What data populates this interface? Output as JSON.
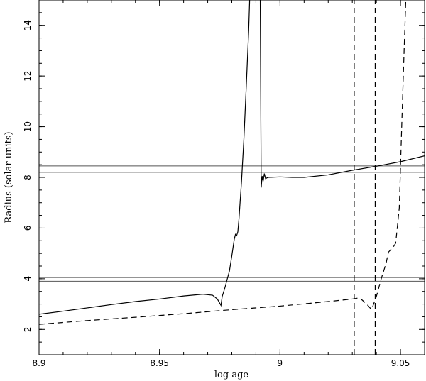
{
  "chart_data": {
    "type": "line",
    "title": "",
    "xlabel": "log age",
    "ylabel": "Radius (solar units)",
    "xlim": [
      8.9,
      9.06
    ],
    "ylim": [
      1.0,
      15.0
    ],
    "grid": false,
    "legend": "none",
    "xticks": [
      {
        "value": 8.9,
        "label": "8.9"
      },
      {
        "value": 8.95,
        "label": "8.95"
      },
      {
        "value": 9.0,
        "label": "9"
      },
      {
        "value": 9.05,
        "label": "9.05"
      }
    ],
    "yticks": [
      {
        "value": 2,
        "label": "2"
      },
      {
        "value": 4,
        "label": "4"
      },
      {
        "value": 6,
        "label": "6"
      },
      {
        "value": 8,
        "label": "8"
      },
      {
        "value": 10,
        "label": "10"
      },
      {
        "value": 12,
        "label": "12"
      },
      {
        "value": 14,
        "label": "14"
      }
    ],
    "hlines": [
      8.45,
      8.2,
      4.05,
      3.9
    ],
    "series": [
      {
        "style": "solid",
        "color": "#000000",
        "points": [
          [
            8.9,
            2.6
          ],
          [
            8.91,
            2.72
          ],
          [
            8.92,
            2.85
          ],
          [
            8.93,
            2.98
          ],
          [
            8.94,
            3.1
          ],
          [
            8.95,
            3.2
          ],
          [
            8.96,
            3.32
          ],
          [
            8.968,
            3.39
          ],
          [
            8.972,
            3.35
          ],
          [
            8.974,
            3.2
          ],
          [
            8.9755,
            2.95
          ],
          [
            8.976,
            3.3
          ],
          [
            8.977,
            3.6
          ],
          [
            8.978,
            3.95
          ],
          [
            8.979,
            4.3
          ],
          [
            8.98,
            4.9
          ],
          [
            8.981,
            5.55
          ],
          [
            8.9815,
            5.75
          ],
          [
            8.982,
            5.7
          ],
          [
            8.9825,
            5.85
          ],
          [
            8.983,
            6.4
          ],
          [
            8.984,
            7.8
          ],
          [
            8.985,
            9.5
          ],
          [
            8.986,
            11.6
          ],
          [
            8.987,
            13.8
          ],
          [
            8.9874,
            15.0
          ]
        ]
      },
      {
        "style": "solid",
        "color": "#000000",
        "points": [
          [
            8.9918,
            15.0
          ],
          [
            8.9922,
            7.6
          ],
          [
            8.9926,
            8.05
          ],
          [
            8.993,
            7.85
          ],
          [
            8.9935,
            8.15
          ],
          [
            8.994,
            7.95
          ],
          [
            8.995,
            8.0
          ],
          [
            9.0,
            8.02
          ],
          [
            9.005,
            8.0
          ],
          [
            9.01,
            8.0
          ],
          [
            9.02,
            8.1
          ],
          [
            9.03,
            8.28
          ],
          [
            9.04,
            8.44
          ],
          [
            9.05,
            8.62
          ],
          [
            9.06,
            8.85
          ]
        ]
      },
      {
        "style": "dashed",
        "color": "#000000",
        "points": [
          [
            8.9,
            2.2
          ],
          [
            8.92,
            2.35
          ],
          [
            8.94,
            2.48
          ],
          [
            8.96,
            2.62
          ],
          [
            8.98,
            2.78
          ],
          [
            9.0,
            2.92
          ],
          [
            9.02,
            3.1
          ],
          [
            9.03,
            3.2
          ],
          [
            9.033,
            3.25
          ],
          [
            9.036,
            3.0
          ],
          [
            9.038,
            2.78
          ],
          [
            9.04,
            3.3
          ],
          [
            9.042,
            4.0
          ],
          [
            9.044,
            4.6
          ],
          [
            9.045,
            5.05
          ],
          [
            9.046,
            5.15
          ],
          [
            9.047,
            5.25
          ],
          [
            9.048,
            5.4
          ],
          [
            9.0495,
            6.8
          ],
          [
            9.0505,
            10.0
          ],
          [
            9.0515,
            13.0
          ],
          [
            9.0522,
            15.0
          ]
        ]
      },
      {
        "style": "dashed",
        "color": "#000000",
        "points": [
          [
            9.0308,
            1.0
          ],
          [
            9.0308,
            15.0
          ]
        ]
      },
      {
        "style": "dashed",
        "color": "#000000",
        "points": [
          [
            9.0395,
            1.0
          ],
          [
            9.0395,
            15.0
          ]
        ]
      }
    ]
  }
}
